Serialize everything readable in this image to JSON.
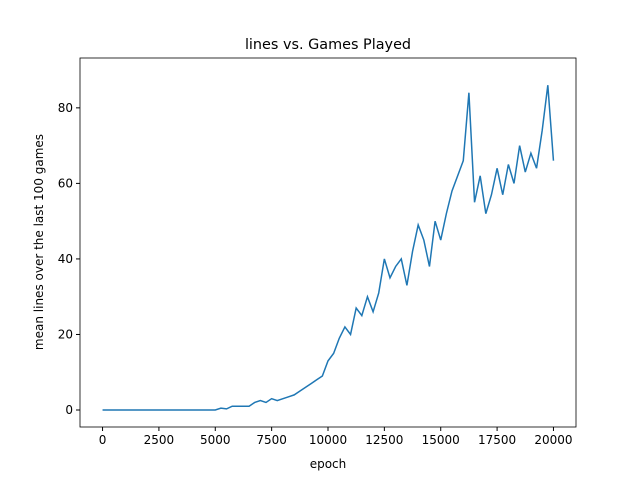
{
  "chart_data": {
    "type": "line",
    "title": "lines vs. Games Played",
    "x_label": "epoch",
    "y_label": "mean lines over the last 100 games",
    "x": [
      0,
      250,
      500,
      750,
      1000,
      1250,
      1500,
      1750,
      2000,
      2250,
      2500,
      2750,
      3000,
      3250,
      3500,
      3750,
      4000,
      4250,
      4500,
      4750,
      5000,
      5250,
      5500,
      5750,
      6000,
      6250,
      6500,
      6750,
      7000,
      7250,
      7500,
      7750,
      8000,
      8250,
      8500,
      8750,
      9000,
      9250,
      9500,
      9750,
      10000,
      10250,
      10500,
      10750,
      11000,
      11250,
      11500,
      11750,
      12000,
      12250,
      12500,
      12750,
      13000,
      13250,
      13500,
      13750,
      14000,
      14250,
      14500,
      14750,
      15000,
      15250,
      15500,
      15750,
      16000,
      16250,
      16500,
      16750,
      17000,
      17250,
      17500,
      17750,
      18000,
      18250,
      18500,
      18750,
      19000,
      19250,
      19500,
      19750,
      20000
    ],
    "values": [
      0,
      0,
      0,
      0,
      0,
      0,
      0,
      0,
      0,
      0,
      0,
      0,
      0,
      0,
      0,
      0,
      0,
      0,
      0,
      0,
      0,
      0.5,
      0.3,
      1,
      1,
      1,
      1,
      2,
      2.5,
      2,
      3,
      2.5,
      3,
      3.5,
      4,
      5,
      6,
      7,
      8,
      9,
      13,
      15,
      19,
      22,
      20,
      27,
      25,
      30,
      26,
      31,
      40,
      35,
      38,
      40,
      33,
      42,
      49,
      45,
      38,
      50,
      45,
      52,
      58,
      62,
      66,
      84,
      55,
      62,
      52,
      57,
      64,
      57,
      65,
      60,
      70,
      63,
      68,
      64,
      74,
      86,
      66
    ],
    "color": "#1f77b4",
    "xlim": [
      -1000,
      21000
    ],
    "ylim": [
      -4.5,
      93.2
    ],
    "xticks": [
      0,
      2500,
      5000,
      7500,
      10000,
      12500,
      15000,
      17500,
      20000
    ],
    "yticks": [
      0,
      20,
      40,
      60,
      80
    ],
    "grid": false
  }
}
